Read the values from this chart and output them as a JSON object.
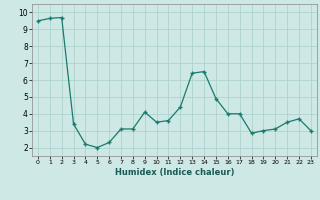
{
  "x": [
    0,
    1,
    2,
    3,
    4,
    5,
    6,
    7,
    8,
    9,
    10,
    11,
    12,
    13,
    14,
    15,
    16,
    17,
    18,
    19,
    20,
    21,
    22,
    23
  ],
  "y": [
    9.5,
    9.65,
    9.7,
    3.4,
    2.2,
    2.0,
    2.3,
    3.1,
    3.1,
    4.1,
    3.5,
    3.6,
    4.4,
    6.4,
    6.5,
    4.9,
    4.0,
    4.0,
    2.85,
    3.0,
    3.1,
    3.5,
    3.7,
    3.0
  ],
  "bg_color": "#cde8e5",
  "line_color": "#1a7a6e",
  "marker": "+",
  "xlabel": "Humidex (Indice chaleur)",
  "xlim": [
    -0.5,
    23.5
  ],
  "ylim": [
    1.5,
    10.5
  ],
  "yticks": [
    2,
    3,
    4,
    5,
    6,
    7,
    8,
    9,
    10
  ],
  "xticks": [
    0,
    1,
    2,
    3,
    4,
    5,
    6,
    7,
    8,
    9,
    10,
    11,
    12,
    13,
    14,
    15,
    16,
    17,
    18,
    19,
    20,
    21,
    22,
    23
  ],
  "grid_color": "#aacfcc"
}
